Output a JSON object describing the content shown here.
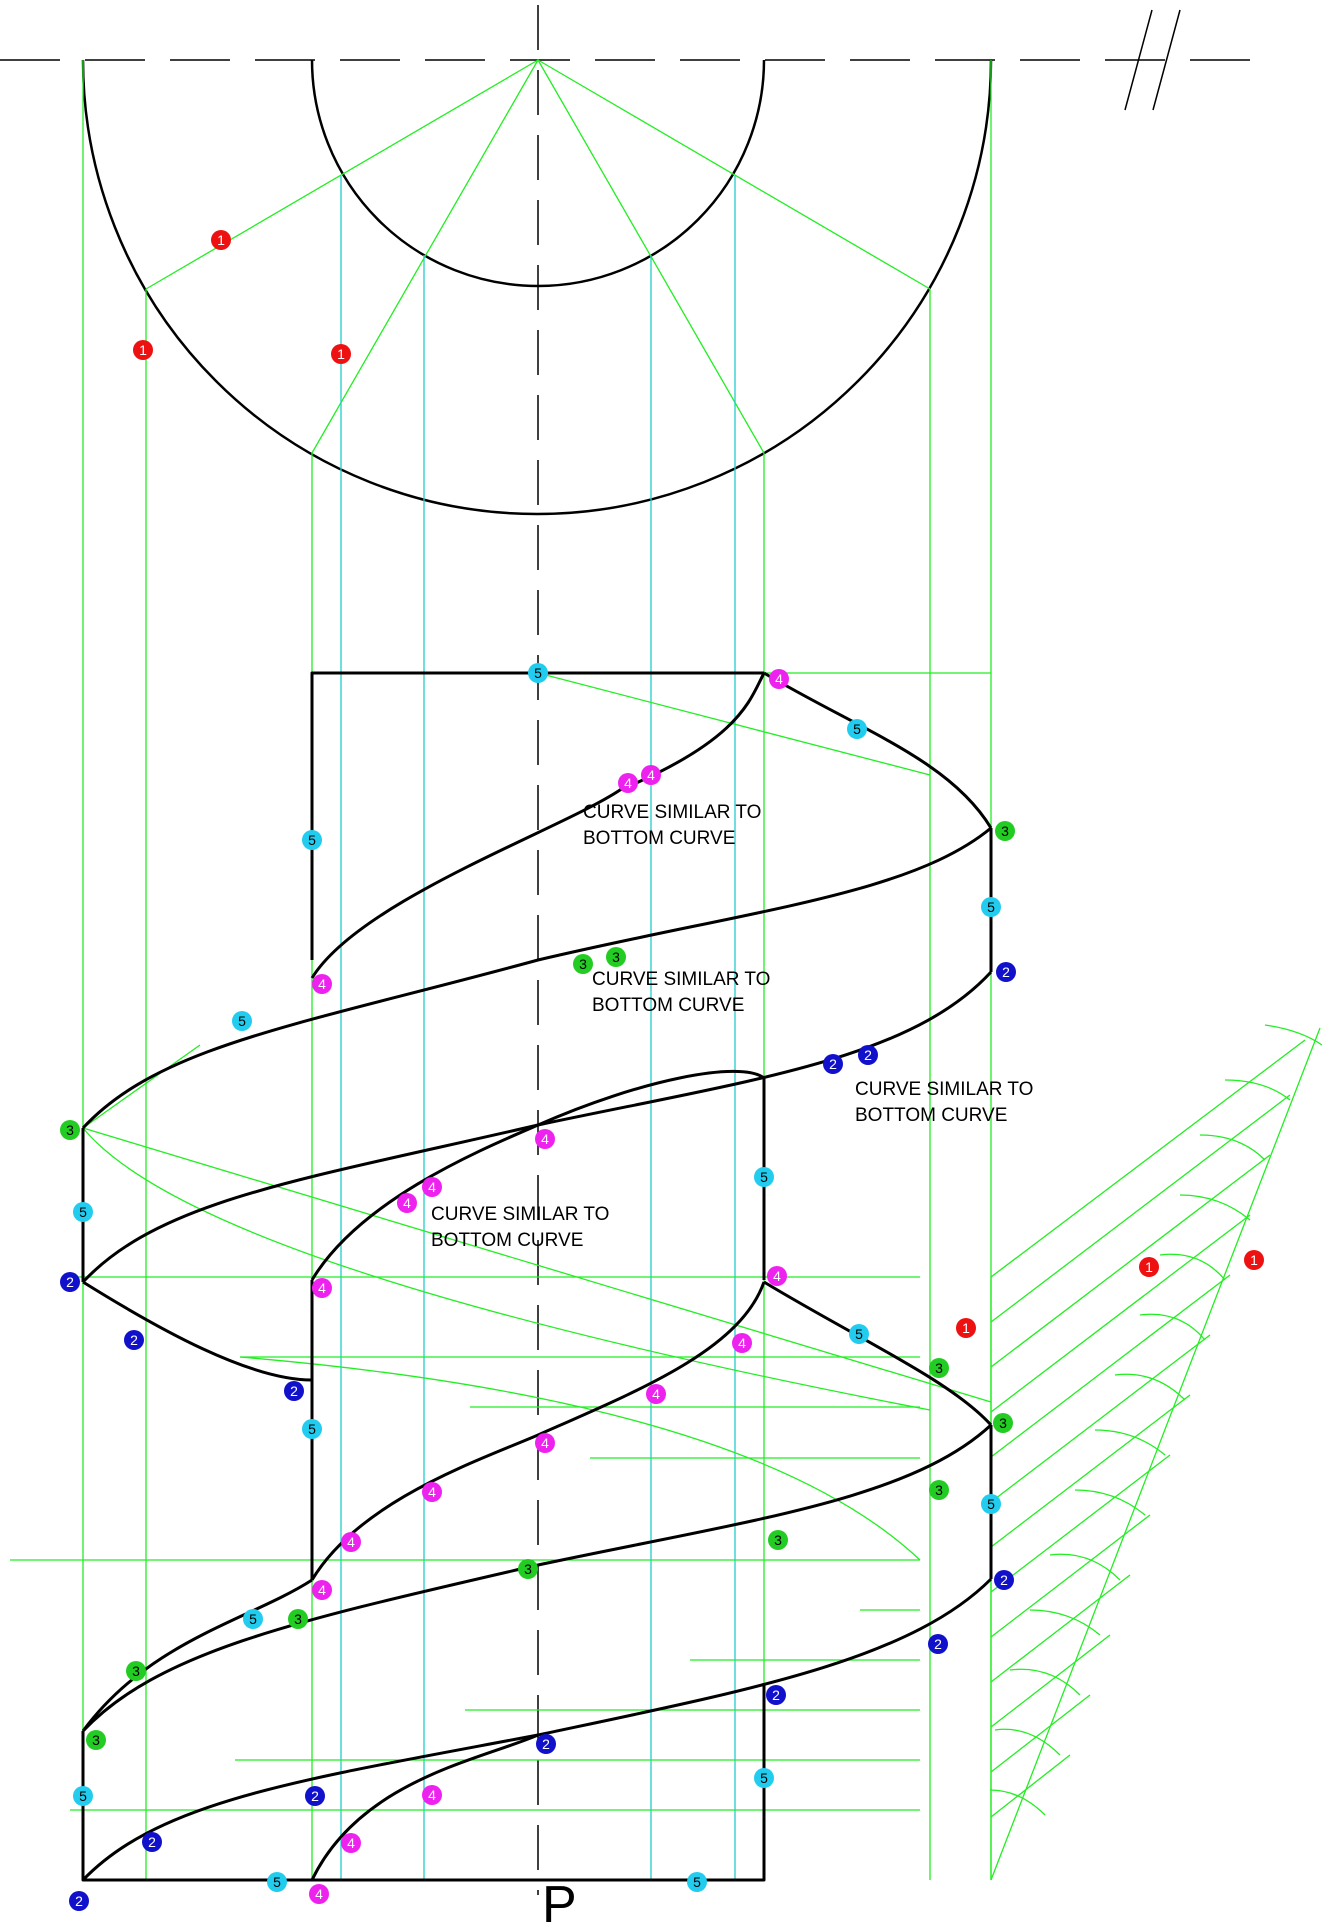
{
  "drawing": {
    "view_label": "P",
    "notes": {
      "note_1": [
        "CURVE SIMILAR TO",
        "BOTTOM CURVE"
      ],
      "note_2": [
        "CURVE SIMILAR TO",
        "BOTTOM CURVE"
      ],
      "note_3": [
        "CURVE SIMILAR TO",
        "BOTTOM CURVE"
      ],
      "note_4": [
        "CURVE SIMILAR TO",
        "BOTTOM CURVE"
      ]
    },
    "marker_colors": {
      "1": "#ee1111",
      "2": "#1111cc",
      "3": "#22cc22",
      "4": "#ee22ee",
      "5": "#22ccee"
    },
    "construction_color": "#22ee22",
    "projector_color": "#22cccc",
    "outline_color": "#000000"
  }
}
